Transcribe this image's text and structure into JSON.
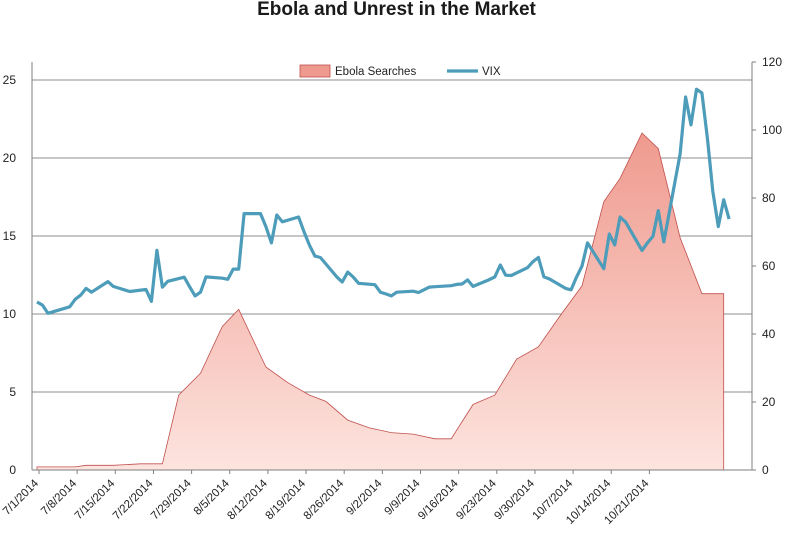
{
  "title": "Ebola and Unrest in the Market",
  "colors": {
    "area_fill_top": "#ef9a8e",
    "area_fill_bottom": "#fde4df",
    "area_stroke": "#c0504d",
    "line": "#4c9cba",
    "grid": "#8c8c8c",
    "axis": "#7f7f7f"
  },
  "chart_data": {
    "type": "area",
    "title": "Ebola and Unrest in the Market",
    "legend_position": "top-center",
    "grid": true,
    "x_tick_labels": [
      "7/1/2014",
      "7/8/2014",
      "7/15/2014",
      "7/22/2014",
      "7/29/2014",
      "8/5/2014",
      "8/12/2014",
      "8/19/2014",
      "8/26/2014",
      "9/2/2014",
      "9/9/2014",
      "9/16/2014",
      "9/23/2014",
      "9/30/2014",
      "10/7/2014",
      "10/14/2014",
      "10/21/2014"
    ],
    "x_range": [
      "7/1/2014",
      "10/24/2014"
    ],
    "y_left": {
      "ticks": [
        0,
        5,
        10,
        15,
        20,
        25
      ],
      "range": [
        0,
        25
      ]
    },
    "y_right": {
      "ticks": [
        0,
        20,
        40,
        60,
        80,
        100,
        120
      ],
      "range": [
        0,
        120
      ]
    },
    "series": [
      {
        "name": "Ebola Searches",
        "type": "area",
        "axis": "left",
        "points": [
          [
            "7/1/2014",
            0.2
          ],
          [
            "7/8/2014",
            0.2
          ],
          [
            "7/10/2014",
            0.3
          ],
          [
            "7/15/2014",
            0.3
          ],
          [
            "7/20/2014",
            0.4
          ],
          [
            "7/24/2014",
            0.4
          ],
          [
            "7/27/2014",
            4.8
          ],
          [
            "7/31/2014",
            6.2
          ],
          [
            "8/4/2014",
            9.2
          ],
          [
            "8/7/2014",
            10.3
          ],
          [
            "8/12/2014",
            6.6
          ],
          [
            "8/16/2014",
            5.6
          ],
          [
            "8/20/2014",
            4.8
          ],
          [
            "8/23/2014",
            4.4
          ],
          [
            "8/27/2014",
            3.2
          ],
          [
            "8/31/2014",
            2.7
          ],
          [
            "9/4/2014",
            2.4
          ],
          [
            "9/8/2014",
            2.3
          ],
          [
            "9/12/2014",
            2.0
          ],
          [
            "9/15/2014",
            2.0
          ],
          [
            "9/19/2014",
            4.2
          ],
          [
            "9/23/2014",
            4.8
          ],
          [
            "9/27/2014",
            7.1
          ],
          [
            "10/1/2014",
            7.9
          ],
          [
            "10/5/2014",
            9.9
          ],
          [
            "10/9/2014",
            11.8
          ],
          [
            "10/13/2014",
            17.2
          ],
          [
            "10/16/2014",
            18.7
          ],
          [
            "10/20/2014",
            21.6
          ],
          [
            "10/23/2014",
            20.6
          ],
          [
            "10/27/2014",
            14.9
          ],
          [
            "10/31/2014",
            11.3
          ],
          [
            "11/4/2014",
            11.3
          ]
        ]
      },
      {
        "name": "VIX",
        "type": "line",
        "axis": "right",
        "points": [
          [
            "7/1/2014",
            49.4
          ],
          [
            "7/2/2014",
            48.5
          ],
          [
            "7/3/2014",
            46.1
          ],
          [
            "7/7/2014",
            48.0
          ],
          [
            "7/8/2014",
            50.2
          ],
          [
            "7/9/2014",
            51.4
          ],
          [
            "7/10/2014",
            53.4
          ],
          [
            "7/11/2014",
            52.3
          ],
          [
            "7/14/2014",
            55.4
          ],
          [
            "7/15/2014",
            54.0
          ],
          [
            "7/16/2014",
            53.5
          ],
          [
            "7/17/2014",
            53.0
          ],
          [
            "7/18/2014",
            52.5
          ],
          [
            "7/21/2014",
            53.1
          ],
          [
            "7/22/2014",
            49.6
          ],
          [
            "7/23/2014",
            64.6
          ],
          [
            "7/24/2014",
            53.8
          ],
          [
            "7/25/2014",
            55.5
          ],
          [
            "7/28/2014",
            56.7
          ],
          [
            "7/29/2014",
            53.9
          ],
          [
            "7/30/2014",
            51.2
          ],
          [
            "7/31/2014",
            52.3
          ],
          [
            "8/1/2014",
            56.8
          ],
          [
            "8/4/2014",
            56.4
          ],
          [
            "8/5/2014",
            56.1
          ],
          [
            "8/6/2014",
            59.1
          ],
          [
            "8/7/2014",
            59.1
          ],
          [
            "8/8/2014",
            75.4
          ],
          [
            "8/11/2014",
            75.4
          ],
          [
            "8/12/2014",
            71.6
          ],
          [
            "8/13/2014",
            66.8
          ],
          [
            "8/14/2014",
            75.0
          ],
          [
            "8/15/2014",
            73.0
          ],
          [
            "8/18/2014",
            74.4
          ],
          [
            "8/19/2014",
            70.0
          ],
          [
            "8/20/2014",
            66.1
          ],
          [
            "8/21/2014",
            62.9
          ],
          [
            "8/22/2014",
            62.5
          ],
          [
            "8/25/2014",
            56.8
          ],
          [
            "8/26/2014",
            55.3
          ],
          [
            "8/27/2014",
            58.2
          ],
          [
            "8/28/2014",
            56.8
          ],
          [
            "8/29/2014",
            54.9
          ],
          [
            "9/1/2014",
            54.5
          ],
          [
            "9/2/2014",
            52.3
          ],
          [
            "9/3/2014",
            51.8
          ],
          [
            "9/4/2014",
            51.2
          ],
          [
            "9/5/2014",
            52.3
          ],
          [
            "9/8/2014",
            52.6
          ],
          [
            "9/9/2014",
            52.2
          ],
          [
            "9/10/2014",
            53.0
          ],
          [
            "9/11/2014",
            53.8
          ],
          [
            "9/12/2014",
            53.9
          ],
          [
            "9/15/2014",
            54.2
          ],
          [
            "9/16/2014",
            54.6
          ],
          [
            "9/17/2014",
            54.7
          ],
          [
            "9/18/2014",
            55.9
          ],
          [
            "9/19/2014",
            54.0
          ],
          [
            "9/22/2014",
            56.0
          ],
          [
            "9/23/2014",
            56.8
          ],
          [
            "9/24/2014",
            60.3
          ],
          [
            "9/25/2014",
            57.3
          ],
          [
            "9/26/2014",
            57.2
          ],
          [
            "9/29/2014",
            59.5
          ],
          [
            "9/30/2014",
            61.3
          ],
          [
            "10/1/2014",
            62.5
          ],
          [
            "10/2/2014",
            56.8
          ],
          [
            "10/3/2014",
            56.2
          ],
          [
            "10/6/2014",
            53.4
          ],
          [
            "10/7/2014",
            53.0
          ],
          [
            "10/8/2014",
            56.8
          ],
          [
            "10/9/2014",
            60.0
          ],
          [
            "10/10/2014",
            66.8
          ],
          [
            "10/13/2014",
            59.2
          ],
          [
            "10/14/2014",
            69.4
          ],
          [
            "10/15/2014",
            66.2
          ],
          [
            "10/16/2014",
            74.4
          ],
          [
            "10/17/2014",
            72.9
          ],
          [
            "10/20/2014",
            64.6
          ],
          [
            "10/21/2014",
            66.8
          ],
          [
            "10/22/2014",
            68.7
          ],
          [
            "10/23/2014",
            76.3
          ],
          [
            "10/24/2014",
            67.1
          ],
          [
            "10/27/2014",
            92.9
          ],
          [
            "10/28/2014",
            109.7
          ],
          [
            "10/29/2014",
            101.5
          ],
          [
            "10/30/2014",
            112.0
          ],
          [
            "10/31/2014",
            110.9
          ],
          [
            "11/1/2014",
            97.6
          ],
          [
            "11/2/2014",
            82.0
          ],
          [
            "11/3/2014",
            71.6
          ],
          [
            "11/4/2014",
            79.5
          ],
          [
            "11/5/2014",
            73.8
          ]
        ]
      }
    ]
  }
}
